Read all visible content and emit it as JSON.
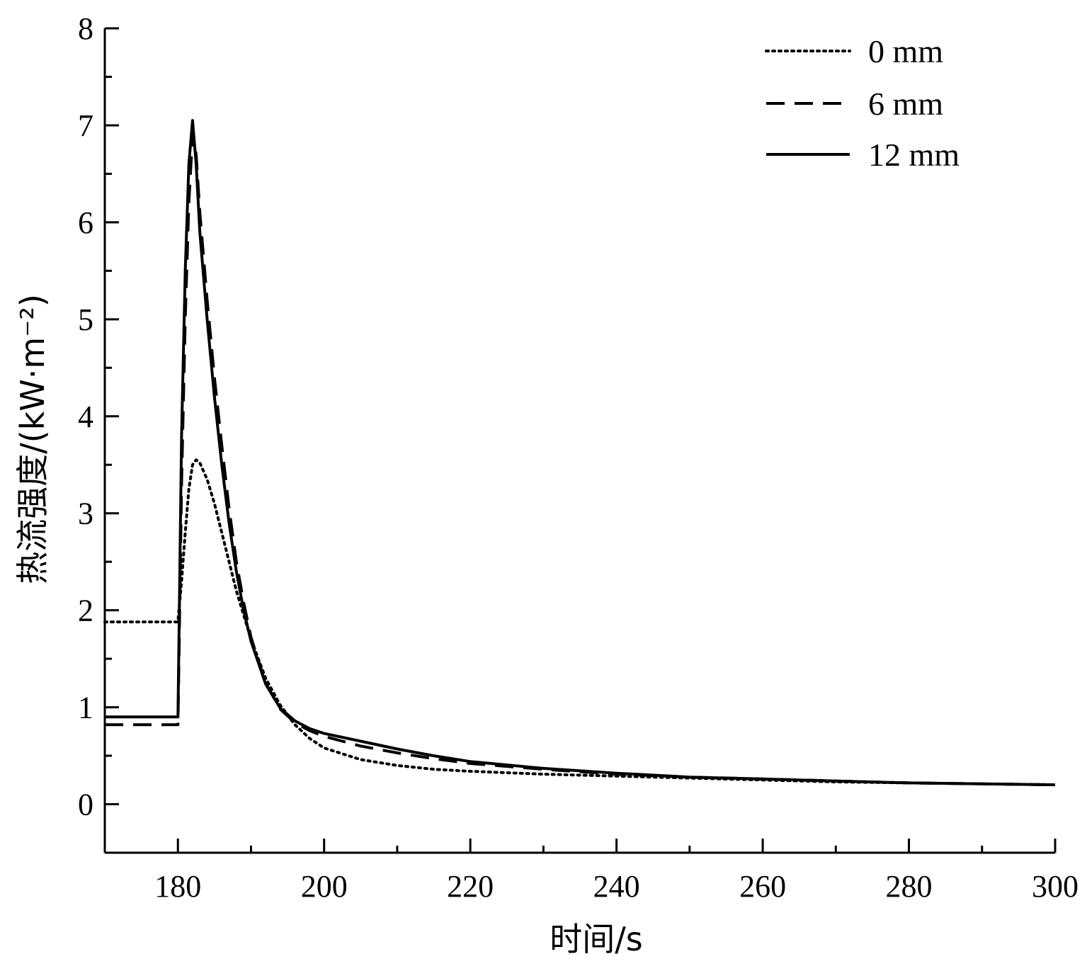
{
  "chart_data": {
    "type": "line",
    "title": "",
    "xlabel": "时间/s",
    "ylabel": "热流强度/(kW·m⁻²)",
    "xlim": [
      170,
      300
    ],
    "ylim": [
      -0.5,
      8
    ],
    "xticks": [
      180,
      200,
      220,
      240,
      260,
      280,
      300
    ],
    "yticks": [
      0,
      1,
      2,
      3,
      4,
      5,
      6,
      7,
      8
    ],
    "grid": false,
    "legend": "top-right",
    "series": [
      {
        "name": "0 mm",
        "style": "dotted",
        "color": "#000000",
        "x": [
          170,
          180,
          180.5,
          181,
          181.5,
          182,
          182.5,
          183,
          184,
          185,
          186,
          187,
          188,
          189,
          190,
          192,
          194,
          196,
          198,
          200,
          205,
          210,
          215,
          220,
          230,
          240,
          250,
          260,
          270,
          280,
          290,
          300
        ],
        "y": [
          1.88,
          1.88,
          2.3,
          2.8,
          3.25,
          3.5,
          3.55,
          3.52,
          3.35,
          3.1,
          2.8,
          2.5,
          2.2,
          1.95,
          1.7,
          1.3,
          1.02,
          0.82,
          0.68,
          0.58,
          0.46,
          0.4,
          0.36,
          0.34,
          0.31,
          0.29,
          0.27,
          0.25,
          0.23,
          0.22,
          0.21,
          0.2
        ]
      },
      {
        "name": "6 mm",
        "style": "dashed",
        "color": "#000000",
        "x": [
          170,
          180,
          180.01,
          180.5,
          181,
          181.5,
          182,
          182.5,
          183,
          184,
          185,
          186,
          187,
          188,
          189,
          190,
          192,
          194,
          196,
          198,
          200,
          205,
          210,
          215,
          220,
          230,
          240,
          250,
          260,
          270,
          280,
          290,
          300
        ],
        "y": [
          0.82,
          0.82,
          0.82,
          3.3,
          5.0,
          6.2,
          6.9,
          6.7,
          6.1,
          5.2,
          4.4,
          3.7,
          3.05,
          2.5,
          2.08,
          1.72,
          1.25,
          0.98,
          0.84,
          0.76,
          0.7,
          0.6,
          0.53,
          0.47,
          0.42,
          0.36,
          0.31,
          0.28,
          0.26,
          0.24,
          0.22,
          0.21,
          0.2
        ]
      },
      {
        "name": "12 mm",
        "style": "solid",
        "color": "#000000",
        "x": [
          170,
          180,
          180.01,
          180.5,
          181,
          181.5,
          182,
          182.5,
          183,
          184,
          185,
          186,
          187,
          188,
          189,
          190,
          192,
          194,
          196,
          198,
          200,
          205,
          210,
          215,
          220,
          230,
          240,
          250,
          260,
          270,
          280,
          290,
          300
        ],
        "y": [
          0.9,
          0.9,
          0.9,
          3.8,
          5.5,
          6.6,
          7.05,
          6.6,
          5.9,
          5.0,
          4.2,
          3.5,
          2.9,
          2.4,
          2.0,
          1.68,
          1.24,
          0.99,
          0.86,
          0.78,
          0.73,
          0.65,
          0.57,
          0.5,
          0.44,
          0.37,
          0.32,
          0.28,
          0.26,
          0.24,
          0.22,
          0.21,
          0.2
        ]
      }
    ]
  }
}
